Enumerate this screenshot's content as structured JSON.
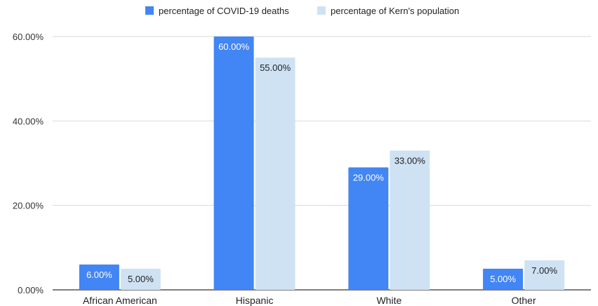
{
  "chart_data": {
    "type": "bar",
    "title": "",
    "xlabel": "",
    "ylabel": "",
    "categories": [
      "African American",
      "Hispanic",
      "White",
      "Other"
    ],
    "series": [
      {
        "name": "percentage of COVID-19 deaths",
        "color": "#4285f4",
        "label_color": "#ffffff",
        "values": [
          6.0,
          60.0,
          29.0,
          5.0
        ],
        "labels": [
          "6.00%",
          "60.00%",
          "29.00%",
          "5.00%"
        ]
      },
      {
        "name": "percentage of Kern's population",
        "color": "#cfe2f3",
        "label_color": "#222222",
        "values": [
          5.0,
          55.0,
          33.0,
          7.0
        ],
        "labels": [
          "5.00%",
          "55.00%",
          "33.00%",
          "7.00%"
        ]
      }
    ],
    "ylim": [
      0,
      60
    ],
    "yticks": [
      0,
      20,
      40,
      60
    ],
    "ytick_labels": [
      "0.00%",
      "20.00%",
      "40.00%",
      "60.00%"
    ],
    "grid": true,
    "grid_color": "#d9d9d9",
    "legend_position": "top-center"
  }
}
